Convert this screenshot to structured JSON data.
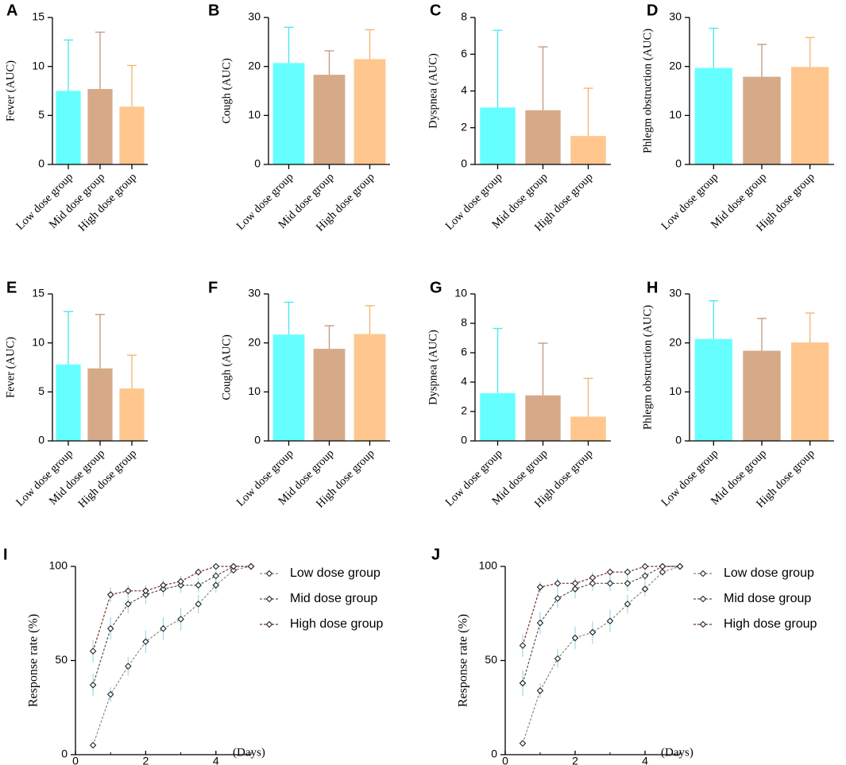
{
  "colors": {
    "low": "#66ffff",
    "mid": "#d6aa88",
    "high": "#ffc78e",
    "low_err": "#4fe9ee",
    "mid_err": "#c79d80",
    "high_err": "#f4b777",
    "line_low": "#888888",
    "line_mid": "#555555",
    "line_high": "#7a2b2b",
    "axis": "#000000",
    "line_err": "#9fd8ea"
  },
  "chart_data": [
    {
      "panel": "A",
      "type": "bar",
      "ylabel": "Fever (AUC)",
      "categories": [
        "Low dose group",
        "Mid dose group",
        "High dose group"
      ],
      "values": [
        7.5,
        7.7,
        5.9
      ],
      "errors": [
        5.2,
        5.8,
        4.2
      ],
      "ylim": [
        0,
        15
      ],
      "yticks": [
        "0",
        "5",
        "10",
        "15"
      ]
    },
    {
      "panel": "B",
      "type": "bar",
      "ylabel": "Cough (AUC)",
      "categories": [
        "Low dose group",
        "Mid dose group",
        "High dose group"
      ],
      "values": [
        20.7,
        18.3,
        21.5
      ],
      "errors": [
        7.3,
        4.9,
        6.0
      ],
      "ylim": [
        0,
        30
      ],
      "yticks": [
        "0",
        "10",
        "20",
        "30"
      ]
    },
    {
      "panel": "C",
      "type": "bar",
      "ylabel": "Dyspnea (AUC)",
      "categories": [
        "Low dose group",
        "Mid dose group",
        "High dose group"
      ],
      "values": [
        3.1,
        2.95,
        1.55
      ],
      "errors": [
        4.2,
        3.45,
        2.6
      ],
      "ylim": [
        0,
        8
      ],
      "yticks": [
        "0",
        "2",
        "4",
        "6",
        "8"
      ]
    },
    {
      "panel": "D",
      "type": "bar",
      "ylabel": "Phlegm obstruction (AUC)",
      "categories": [
        "Low dose group",
        "Mid dose group",
        "High dose group"
      ],
      "values": [
        19.7,
        17.9,
        19.9
      ],
      "errors": [
        8.1,
        6.6,
        6.0
      ],
      "ylim": [
        0,
        30
      ],
      "yticks": [
        "0",
        "10",
        "20",
        "30"
      ]
    },
    {
      "panel": "E",
      "type": "bar",
      "ylabel": "Fever (AUC)",
      "categories": [
        "Low dose group",
        "Mid dose group",
        "High dose group"
      ],
      "values": [
        7.8,
        7.4,
        5.35
      ],
      "errors": [
        5.4,
        5.5,
        3.4
      ],
      "ylim": [
        0,
        15
      ],
      "yticks": [
        "0",
        "5",
        "10",
        "15"
      ]
    },
    {
      "panel": "F",
      "type": "bar",
      "ylabel": "Cough (AUC)",
      "categories": [
        "Low dose group",
        "Mid dose group",
        "High dose group"
      ],
      "values": [
        21.7,
        18.8,
        21.8
      ],
      "errors": [
        6.6,
        4.7,
        5.8
      ],
      "ylim": [
        0,
        30
      ],
      "yticks": [
        "0",
        "10",
        "20",
        "30"
      ]
    },
    {
      "panel": "G",
      "type": "bar",
      "ylabel": "Dyspnea (AUC)",
      "categories": [
        "Low dose group",
        "Mid dose group",
        "High dose group"
      ],
      "values": [
        3.25,
        3.1,
        1.65
      ],
      "errors": [
        4.4,
        3.55,
        2.6
      ],
      "ylim": [
        0,
        10
      ],
      "yticks": [
        "0",
        "2",
        "4",
        "6",
        "8",
        "10"
      ]
    },
    {
      "panel": "H",
      "type": "bar",
      "ylabel": "Phlegm obstruction (AUC)",
      "categories": [
        "Low dose group",
        "Mid dose group",
        "High dose group"
      ],
      "values": [
        20.8,
        18.4,
        20.1
      ],
      "errors": [
        7.8,
        6.6,
        6.0
      ],
      "ylim": [
        0,
        30
      ],
      "yticks": [
        "0",
        "10",
        "20",
        "30"
      ]
    },
    {
      "panel": "I",
      "type": "line",
      "ylabel": "Response rate (%)",
      "xlabel": "(Days)",
      "xlim": [
        0,
        5
      ],
      "ylim": [
        0,
        100
      ],
      "xticks": [
        "0",
        "2",
        "4"
      ],
      "yticks": [
        "0",
        "50",
        "100"
      ],
      "x": [
        0.5,
        1,
        1.5,
        2,
        2.5,
        3,
        3.5,
        4,
        4.5,
        5
      ],
      "series": [
        {
          "name": "Low dose group",
          "values": [
            5,
            32,
            47,
            60,
            67,
            72,
            80,
            90,
            98,
            100
          ],
          "errors": [
            0,
            4,
            5,
            6,
            6,
            6,
            5,
            4,
            2,
            0
          ]
        },
        {
          "name": "Mid dose group",
          "values": [
            37,
            67,
            80,
            85,
            88,
            90,
            90,
            95,
            100,
            100
          ],
          "errors": [
            6,
            6,
            5,
            5,
            4,
            4,
            4,
            3,
            0,
            0
          ]
        },
        {
          "name": "High dose group",
          "values": [
            55,
            85,
            87,
            87,
            90,
            92,
            97,
            100,
            100,
            100
          ],
          "errors": [
            6,
            4,
            3,
            3,
            3,
            3,
            2,
            0,
            0,
            0
          ]
        }
      ]
    },
    {
      "panel": "J",
      "type": "line",
      "ylabel": "Response rate (%)",
      "xlabel": "(Days)",
      "xlim": [
        0,
        5
      ],
      "ylim": [
        0,
        100
      ],
      "xticks": [
        "0",
        "2",
        "4"
      ],
      "yticks": [
        "0",
        "50",
        "100"
      ],
      "x": [
        0.5,
        1,
        1.5,
        2,
        2.5,
        3,
        3.5,
        4,
        4.5,
        5
      ],
      "series": [
        {
          "name": "Low dose group",
          "values": [
            6,
            34,
            51,
            62,
            65,
            71,
            80,
            88,
            97,
            100
          ],
          "errors": [
            0,
            4,
            5,
            6,
            6,
            6,
            5,
            4,
            2,
            0
          ]
        },
        {
          "name": "Mid dose group",
          "values": [
            38,
            70,
            83,
            88,
            91,
            91,
            91,
            95,
            100,
            100
          ],
          "errors": [
            7,
            6,
            5,
            5,
            4,
            4,
            4,
            3,
            0,
            0
          ]
        },
        {
          "name": "High dose group",
          "values": [
            58,
            89,
            91,
            91,
            94,
            97,
            97,
            100,
            100,
            100
          ],
          "errors": [
            6,
            3,
            3,
            3,
            3,
            2,
            2,
            0,
            0,
            0
          ]
        }
      ]
    }
  ]
}
